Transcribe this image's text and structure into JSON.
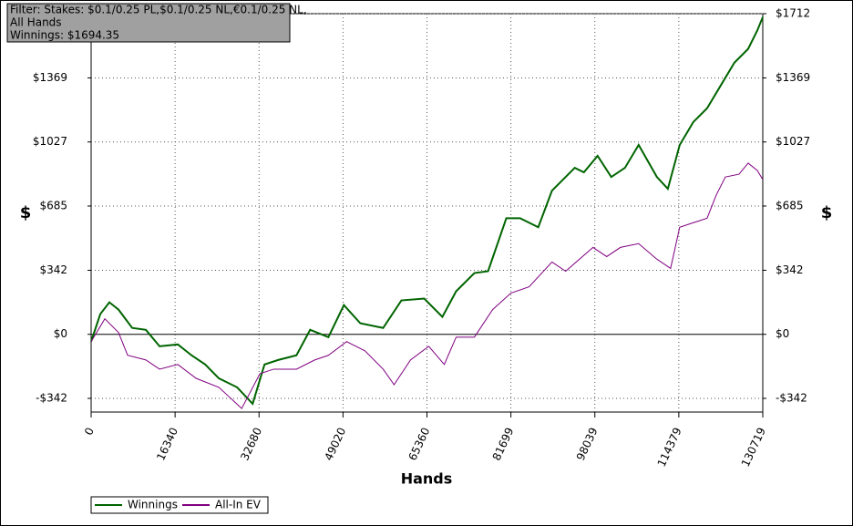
{
  "chart_data": {
    "type": "line",
    "annotation": [
      "Filter: Stakes: $0.1/0.25 PL,$0.1/0.25 NL,€0.1/0.25 NL,",
      "All Hands",
      "Winnings: $1694.35"
    ],
    "x_label": "Hands",
    "y_label": "$",
    "xlim": [
      0,
      130719
    ],
    "xticks": [
      0,
      16340,
      32680,
      49020,
      65360,
      81699,
      98039,
      114379,
      130719
    ],
    "ylim": [
      -415,
      1712
    ],
    "yticks": [
      {
        "value": -342,
        "label": "-$342"
      },
      {
        "value": 0,
        "label": "$0"
      },
      {
        "value": 342,
        "label": "$342"
      },
      {
        "value": 685,
        "label": "$685"
      },
      {
        "value": 1027,
        "label": "$1027"
      },
      {
        "value": 1369,
        "label": "$1369"
      },
      {
        "value": 1712,
        "label": "$1712"
      }
    ],
    "grid": true,
    "series": [
      {
        "name": "Winnings",
        "color": "#006400",
        "x": [
          0,
          1776,
          3552,
          5328,
          7992,
          10656,
          13320,
          16872,
          19536,
          22200,
          24864,
          28416,
          31435,
          33744,
          36408,
          39960,
          42624,
          46176,
          49196,
          52392,
          56832,
          60384,
          64824,
          68360,
          71040,
          74592,
          77256,
          80808,
          83472,
          87024,
          89688,
          94128,
          95904,
          98568,
          101232,
          103896,
          106560,
          110112,
          112243,
          114552,
          117216,
          119880,
          122544,
          125208,
          127872,
          129648,
          130719
        ],
        "values": [
          -39,
          108,
          171,
          132,
          34,
          24,
          -64,
          -54,
          -112,
          -161,
          -235,
          -283,
          -371,
          -161,
          -137,
          -112,
          24,
          -15,
          156,
          59,
          34,
          181,
          191,
          93,
          230,
          327,
          337,
          620,
          620,
          572,
          767,
          889,
          865,
          953,
          840,
          889,
          1011,
          840,
          777,
          1011,
          1134,
          1207,
          1329,
          1451,
          1524,
          1622,
          1694
        ]
      },
      {
        "name": "All-In EV",
        "color": "#800080",
        "x": [
          0,
          2664,
          5328,
          7104,
          10656,
          13320,
          16872,
          20424,
          24864,
          29304,
          32856,
          35520,
          39960,
          43512,
          46176,
          49728,
          53280,
          56832,
          58963,
          62160,
          65712,
          68731,
          71040,
          74592,
          78144,
          81696,
          85248,
          89688,
          92352,
          97680,
          100344,
          103008,
          106560,
          110112,
          112776,
          114552,
          117216,
          119880,
          121656,
          123432,
          126096,
          127872,
          129648,
          130719
        ],
        "values": [
          -39,
          83,
          10,
          -112,
          -137,
          -186,
          -161,
          -235,
          -283,
          -396,
          -210,
          -186,
          -186,
          -137,
          -112,
          -39,
          -88,
          -186,
          -269,
          -137,
          -64,
          -161,
          -15,
          -15,
          132,
          220,
          254,
          386,
          337,
          464,
          415,
          464,
          484,
          401,
          352,
          572,
          596,
          620,
          743,
          840,
          855,
          914,
          875,
          826
        ]
      }
    ]
  }
}
